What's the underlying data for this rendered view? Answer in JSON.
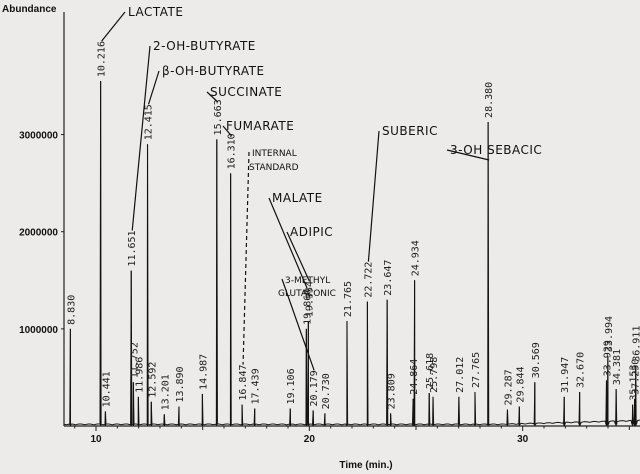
{
  "chart_data": {
    "type": "line",
    "ylabel": "Abundance",
    "xlabel": "Time (min.)",
    "xlim": [
      8.5,
      35.5
    ],
    "ylim": [
      0,
      4200000
    ],
    "yticks": [
      1000000,
      2000000,
      3000000
    ],
    "ytick_labels": [
      "1000000",
      "2000000",
      "3000000"
    ],
    "xticks": [
      10,
      20,
      30
    ],
    "xtick_labels": [
      "10",
      "20",
      "30"
    ],
    "grid": false,
    "peaks": [
      {
        "rt": 8.8,
        "label": "8.830",
        "height": 1000000
      },
      {
        "rt": 10.216,
        "label": "10.216",
        "height": 3550000
      },
      {
        "rt": 10.441,
        "label": "10.441",
        "height": 150000
      },
      {
        "rt": 11.651,
        "label": "11.651",
        "height": 1600000
      },
      {
        "rt": 11.752,
        "label": "11.752",
        "height": 450000
      },
      {
        "rt": 11.986,
        "label": "11.986",
        "height": 300000
      },
      {
        "rt": 12.415,
        "label": "12.415",
        "height": 2900000
      },
      {
        "rt": 12.592,
        "label": "12.592",
        "height": 250000
      },
      {
        "rt": 13.201,
        "label": "13.201",
        "height": 120000
      },
      {
        "rt": 13.89,
        "label": "13.890",
        "height": 200000
      },
      {
        "rt": 14.987,
        "label": "14.987",
        "height": 330000
      },
      {
        "rt": 15.663,
        "label": "15.663",
        "height": 2950000
      },
      {
        "rt": 16.31,
        "label": "16.310",
        "height": 2600000
      },
      {
        "rt": 16.847,
        "label": "16.847",
        "height": 220000
      },
      {
        "rt": 17.439,
        "label": "17.439",
        "height": 180000
      },
      {
        "rt": 19.106,
        "label": "19.106",
        "height": 180000
      },
      {
        "rt": 19.86,
        "label": "19.860",
        "height": 1000000
      },
      {
        "rt": 19.954,
        "label": "19.954",
        "height": 1080000
      },
      {
        "rt": 20.179,
        "label": "20.179",
        "height": 160000
      },
      {
        "rt": 20.73,
        "label": "20.730",
        "height": 130000
      },
      {
        "rt": 21.765,
        "label": "21.765",
        "height": 1080000
      },
      {
        "rt": 22.722,
        "label": "22.722",
        "height": 1280000
      },
      {
        "rt": 23.647,
        "label": "23.647",
        "height": 1300000
      },
      {
        "rt": 23.809,
        "label": "23.809",
        "height": 130000
      },
      {
        "rt": 24.864,
        "label": "24.864",
        "height": 280000
      },
      {
        "rt": 24.934,
        "label": "24.934",
        "height": 1500000
      },
      {
        "rt": 25.618,
        "label": "25.618",
        "height": 340000
      },
      {
        "rt": 25.798,
        "label": "25.798",
        "height": 300000
      },
      {
        "rt": 27.012,
        "label": "27.012",
        "height": 300000
      },
      {
        "rt": 27.765,
        "label": "27.765",
        "height": 350000
      },
      {
        "rt": 28.38,
        "label": "28.380",
        "height": 3130000
      },
      {
        "rt": 29.287,
        "label": "29.287",
        "height": 170000
      },
      {
        "rt": 29.844,
        "label": "29.844",
        "height": 200000
      },
      {
        "rt": 30.569,
        "label": "30.569",
        "height": 450000
      },
      {
        "rt": 31.947,
        "label": "31.947",
        "height": 300000
      },
      {
        "rt": 32.67,
        "label": "32.670",
        "height": 350000
      },
      {
        "rt": 33.929,
        "label": "33.929",
        "height": 470000
      },
      {
        "rt": 33.994,
        "label": "33.994",
        "height": 720000
      },
      {
        "rt": 34.381,
        "label": "34.381",
        "height": 380000
      },
      {
        "rt": 35.153,
        "label": "35.153",
        "height": 220000
      },
      {
        "rt": 35.25,
        "label": "37.250",
        "height": 280000
      },
      {
        "rt": 35.3,
        "label": "36.911",
        "height": 620000
      }
    ],
    "annotations": [
      {
        "text": "LACTATE",
        "rt": 10.216
      },
      {
        "text": "2-OH-BUTYRATE",
        "rt": 11.651
      },
      {
        "text": "β-OH-BUTYRATE",
        "rt": 12.415
      },
      {
        "text": "SUCCINATE",
        "rt": 15.663
      },
      {
        "text": "FUMARATE",
        "rt": 16.31
      },
      {
        "text": "INTERNAL",
        "rt": 16.847
      },
      {
        "text": "STANDARD",
        "rt": 16.847
      },
      {
        "text": "MALATE",
        "rt": 19.86
      },
      {
        "text": "ADIPIC",
        "rt": 19.954
      },
      {
        "text": "3-METHYL",
        "rt": 20.179
      },
      {
        "text": "GLUTACONIC",
        "rt": 20.179
      },
      {
        "text": "SUBERIC",
        "rt": 22.722
      },
      {
        "text": "3-OH SEBACIC",
        "rt": 28.38
      }
    ]
  }
}
